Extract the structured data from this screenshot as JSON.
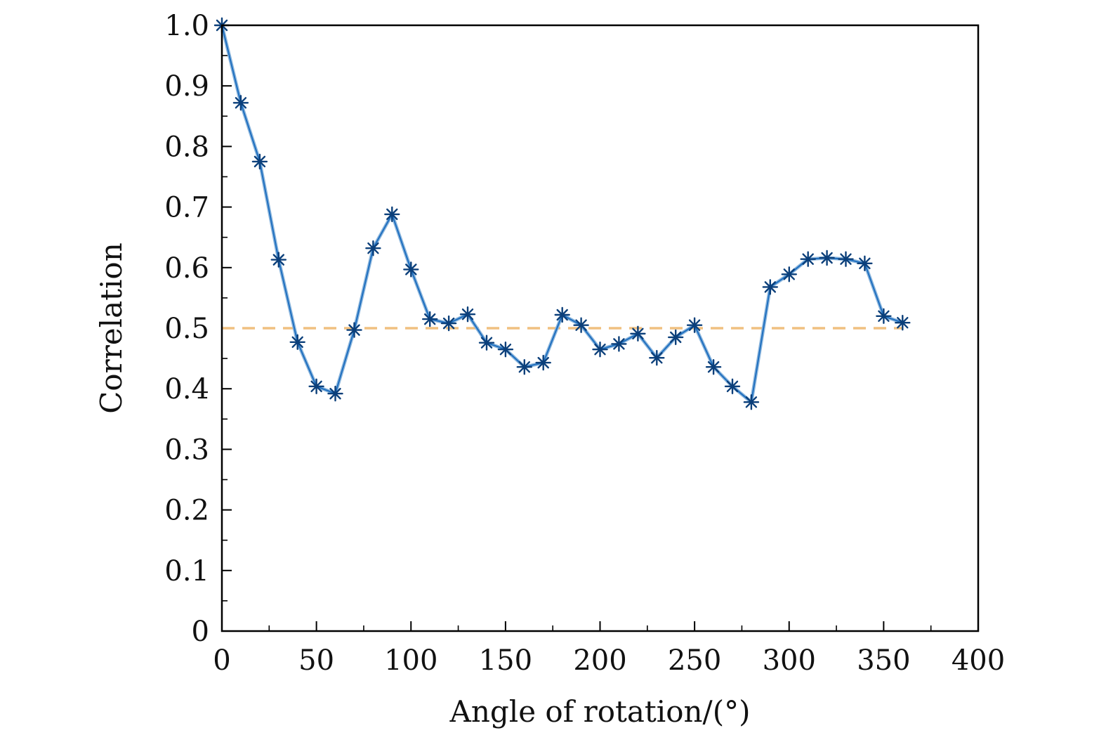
{
  "chart_data": {
    "type": "line",
    "title": "",
    "xlabel": "Angle of rotation/(°)",
    "ylabel": "Correlation",
    "xlim": [
      0,
      400
    ],
    "ylim": [
      0,
      1.0
    ],
    "x_ticks": [
      0,
      50,
      100,
      150,
      200,
      250,
      300,
      350,
      400
    ],
    "x_tick_labels": [
      "0",
      "50",
      "100",
      "150",
      "200",
      "250",
      "300",
      "350",
      "400"
    ],
    "y_ticks": [
      0,
      0.1,
      0.2,
      0.3,
      0.4,
      0.5,
      0.6,
      0.7,
      0.8,
      0.9,
      1.0
    ],
    "y_tick_labels": [
      "0",
      "0.1",
      "0.2",
      "0.3",
      "0.4",
      "0.5",
      "0.6",
      "0.7",
      "0.8",
      "0.9",
      "1.0"
    ],
    "grid": false,
    "legend": false,
    "series": [
      {
        "marker": "asterisk",
        "color": "#1f6fbf",
        "x": [
          0,
          10,
          20,
          30,
          40,
          50,
          60,
          70,
          80,
          90,
          100,
          110,
          120,
          130,
          140,
          150,
          160,
          170,
          180,
          190,
          200,
          210,
          220,
          230,
          240,
          250,
          260,
          270,
          280,
          290,
          300,
          310,
          320,
          330,
          340,
          350,
          360
        ],
        "y": [
          1.0,
          0.872,
          0.775,
          0.613,
          0.477,
          0.404,
          0.392,
          0.497,
          0.632,
          0.688,
          0.597,
          0.515,
          0.508,
          0.523,
          0.476,
          0.465,
          0.436,
          0.443,
          0.522,
          0.505,
          0.465,
          0.474,
          0.491,
          0.451,
          0.485,
          0.505,
          0.436,
          0.404,
          0.378,
          0.568,
          0.589,
          0.614,
          0.616,
          0.614,
          0.607,
          0.52,
          0.509
        ]
      }
    ],
    "reference_line": {
      "y": 0.5,
      "x_range": [
        0,
        360
      ],
      "style": "dashed",
      "color": "#f0c080"
    }
  }
}
